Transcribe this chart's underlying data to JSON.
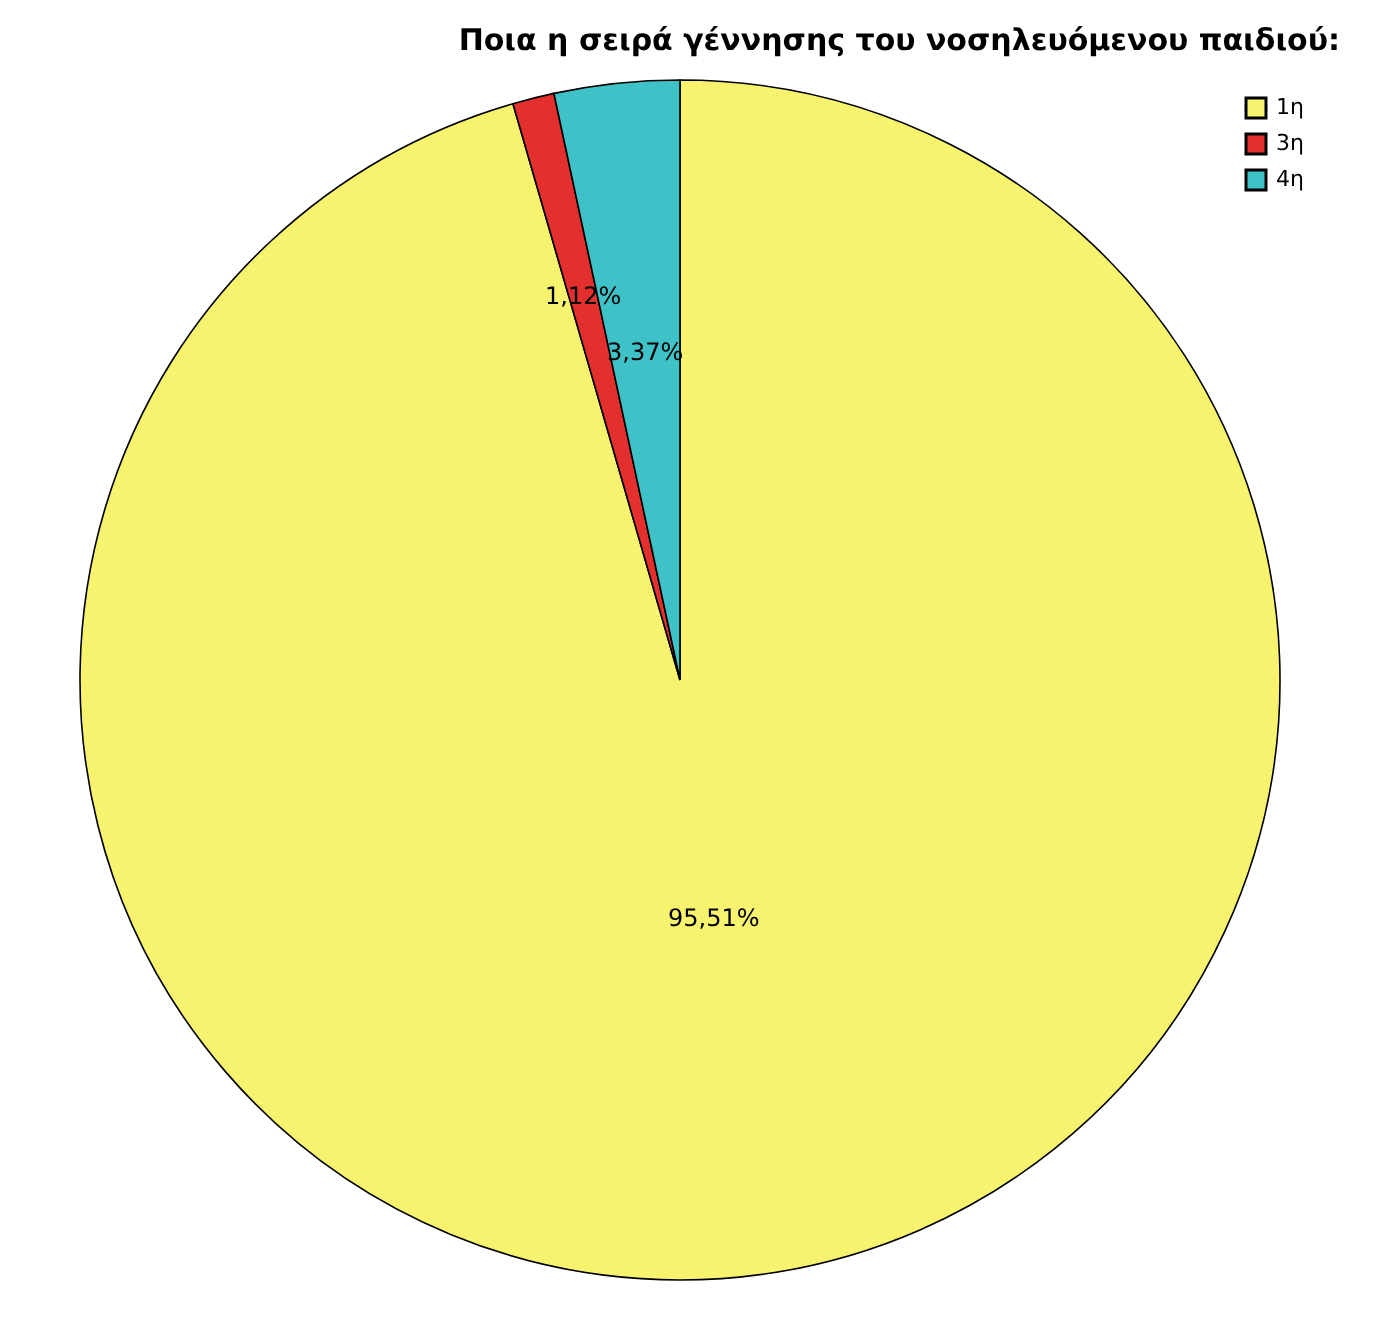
{
  "chart_data": {
    "type": "pie",
    "title": "Ποια η σειρά γέννησης του νοσηλευόμενου παιδιού:",
    "categories": [
      "1η",
      "3η",
      "4η"
    ],
    "values": [
      95.51,
      1.12,
      3.37
    ],
    "colors": [
      "#f7f36f",
      "#e3302f",
      "#3ec2c7"
    ],
    "value_labels": [
      "95,51%",
      "1,12%",
      "3,37%"
    ],
    "legend": "top right"
  }
}
